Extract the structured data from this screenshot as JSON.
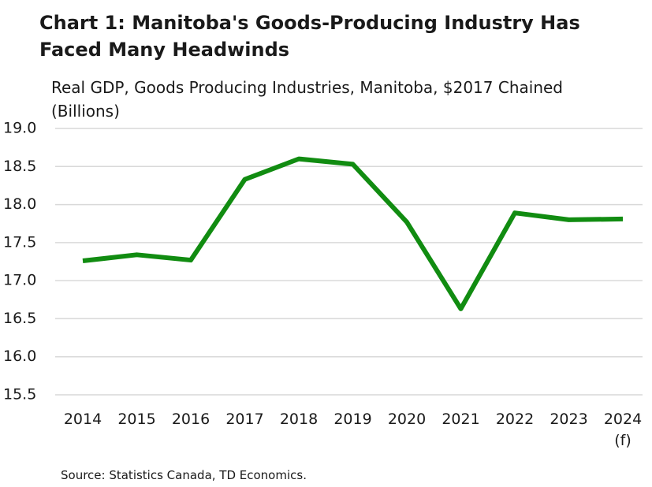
{
  "chart_data": {
    "type": "line",
    "title": "Chart 1: Manitoba's Goods-Producing Industry Has Faced Many Headwinds",
    "subtitle": "Real GDP, Goods Producing Industries, Manitoba, $2017 Chained (Billions)",
    "source": "Source: Statistics Canada, TD Economics.",
    "categories": [
      "2014",
      "2015",
      "2016",
      "2017",
      "2018",
      "2019",
      "2020",
      "2021",
      "2022",
      "2023",
      "2024 (f)"
    ],
    "series": [
      {
        "color": "#118c11",
        "values": [
          17.26,
          17.34,
          17.27,
          18.33,
          18.6,
          18.53,
          17.77,
          16.63,
          17.89,
          17.8,
          17.81
        ]
      }
    ],
    "ylim": [
      15.5,
      19.0
    ],
    "yticks": [
      15.5,
      {
        "value": 16,
        "label": "16.0"
      },
      16.5,
      {
        "value": 17,
        "label": "17.0"
      },
      17.5,
      {
        "value": 18,
        "label": "18.0"
      },
      18.5,
      {
        "value": 19,
        "label": "19.0"
      }
    ],
    "grid": true
  }
}
